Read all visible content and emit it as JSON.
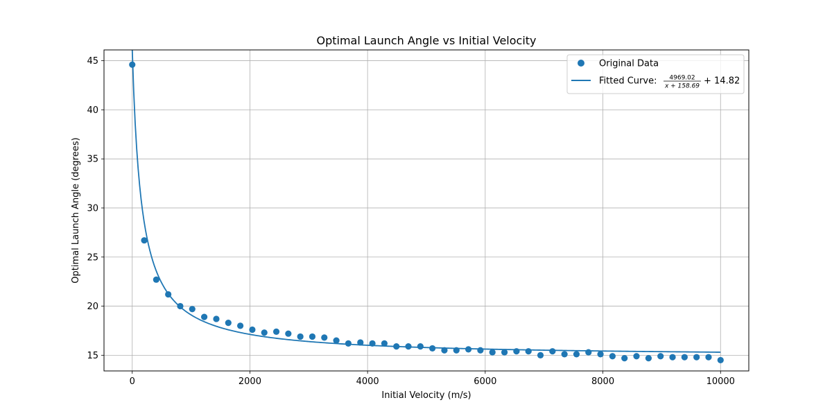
{
  "chart_data": {
    "type": "scatter",
    "title": "Optimal Launch Angle vs Initial Velocity",
    "xlabel": "Initial Velocity (m/s)",
    "ylabel": "Optimal Launch Angle (degrees)",
    "xlim": [
      -480,
      10480
    ],
    "ylim": [
      13.4,
      46.1
    ],
    "xticks": [
      0,
      2000,
      4000,
      6000,
      8000,
      10000
    ],
    "xtick_labels": [
      "0",
      "2000",
      "4000",
      "6000",
      "8000",
      "10000"
    ],
    "yticks": [
      15,
      20,
      25,
      30,
      35,
      40,
      45
    ],
    "ytick_labels": [
      "15",
      "20",
      "25",
      "30",
      "35",
      "40",
      "45"
    ],
    "grid": true,
    "legend_position": "upper right",
    "color": "#1f77b4",
    "series": [
      {
        "name": "Original Data",
        "kind": "scatter",
        "x": [
          0,
          204,
          408,
          612,
          816,
          1020,
          1224,
          1429,
          1633,
          1837,
          2041,
          2245,
          2449,
          2653,
          2857,
          3061,
          3265,
          3469,
          3673,
          3878,
          4082,
          4286,
          4490,
          4694,
          4898,
          5102,
          5306,
          5510,
          5714,
          5918,
          6122,
          6327,
          6531,
          6735,
          6939,
          7143,
          7347,
          7551,
          7755,
          7959,
          8163,
          8367,
          8571,
          8776,
          8980,
          9184,
          9388,
          9592,
          9796,
          10000
        ],
        "y": [
          44.6,
          26.7,
          22.7,
          21.2,
          20.0,
          19.7,
          18.9,
          18.7,
          18.3,
          18.0,
          17.6,
          17.3,
          17.4,
          17.2,
          16.9,
          16.9,
          16.8,
          16.5,
          16.2,
          16.3,
          16.2,
          16.2,
          15.9,
          15.9,
          15.9,
          15.7,
          15.5,
          15.5,
          15.6,
          15.5,
          15.3,
          15.3,
          15.4,
          15.4,
          15.0,
          15.4,
          15.1,
          15.1,
          15.3,
          15.1,
          14.9,
          14.7,
          14.9,
          14.7,
          14.9,
          14.8,
          14.8,
          14.8,
          14.8,
          14.5
        ]
      },
      {
        "name": "Fitted Curve",
        "kind": "line",
        "equation": {
          "a": 4969.02,
          "b": 158.69,
          "c": 14.82
        },
        "x_range": [
          0,
          10000
        ]
      }
    ]
  },
  "legend": {
    "scatter_label": "Original Data",
    "line_label_prefix": "Fitted Curve: ",
    "frac_numerator": "4969.02",
    "frac_denominator": "x + 158.69",
    "frac_suffix": "+ 14.82"
  }
}
